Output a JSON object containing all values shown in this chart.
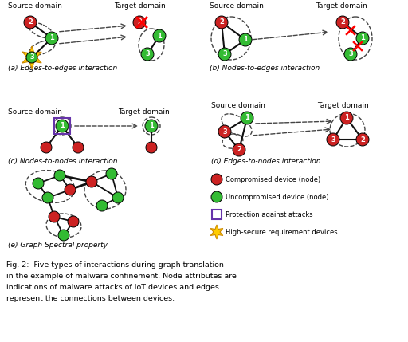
{
  "bg_color": "#ffffff",
  "node_red": "#cc2222",
  "node_green": "#33bb33",
  "star_color": "#ffcc00",
  "star_edge": "#cc8800",
  "edge_color": "#111111",
  "dashed_color": "#444444",
  "purple": "#6633aa",
  "label_a": "(a) Edges-to-edges interaction",
  "label_b": "(b) Nodes-to-edges interaction",
  "label_c": "(c) Nodes-to-nodes interaction",
  "label_d": "(d) Edges-to-nodes interaction",
  "label_e": "(e) Graph Spectral property",
  "source_domain": "Source domain",
  "target_domain": "Target domain",
  "fig_caption_line1": "Fig. 2:  Five types of interactions during graph translation",
  "fig_caption_line2": "in the example of malware confinement. Node attributes are",
  "fig_caption_line3": "indications of malware attacks of IoT devices and edges",
  "fig_caption_line4": "represent the connections between devices.",
  "legend_compromised": "Compromised device (node)",
  "legend_uncompromised": "Uncompromised device (node)",
  "legend_protection": "Protection against attacks",
  "legend_highsecure": "High-secure requirement devices"
}
